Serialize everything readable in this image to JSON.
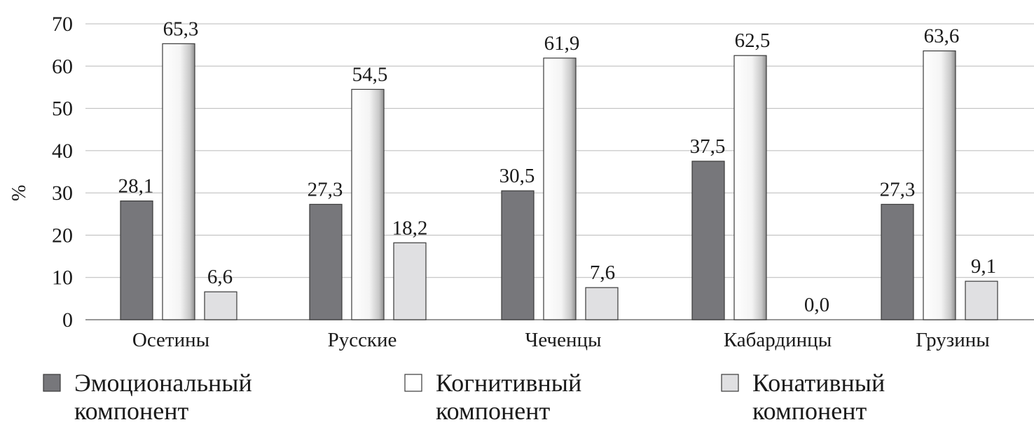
{
  "chart_data": {
    "type": "bar",
    "title": "",
    "xlabel": "",
    "ylabel": "%",
    "ylim": [
      0,
      70
    ],
    "yticks": [
      0,
      10,
      20,
      30,
      40,
      50,
      60,
      70
    ],
    "grid": true,
    "legend_position": "bottom",
    "categories": [
      "Осетины",
      "Русские",
      "Чеченцы",
      "Кабардинцы",
      "Грузины"
    ],
    "series": [
      {
        "name": "Эмоциональный компонент",
        "legend_lines": [
          "Эмоциональный",
          "компонент"
        ],
        "color": "#77777b",
        "values": [
          28.1,
          27.3,
          30.5,
          37.5,
          27.3
        ],
        "labels": [
          "28,1",
          "27,3",
          "30,5",
          "37,5",
          "27,3"
        ]
      },
      {
        "name": "Когнитивный компонент",
        "legend_lines": [
          "Когнитивный",
          "компонент"
        ],
        "color": "#ffffff",
        "values": [
          65.3,
          54.5,
          61.9,
          62.5,
          63.6
        ],
        "labels": [
          "65,3",
          "54,5",
          "61,9",
          "62,5",
          "63,6"
        ]
      },
      {
        "name": "Конативный компонент",
        "legend_lines": [
          "Конативный",
          "компонент"
        ],
        "color": "#e0e0e2",
        "values": [
          6.6,
          18.2,
          7.6,
          0.0,
          9.1
        ],
        "labels": [
          "6,6",
          "18,2",
          "7,6",
          "0,0",
          "9,1"
        ]
      }
    ]
  }
}
